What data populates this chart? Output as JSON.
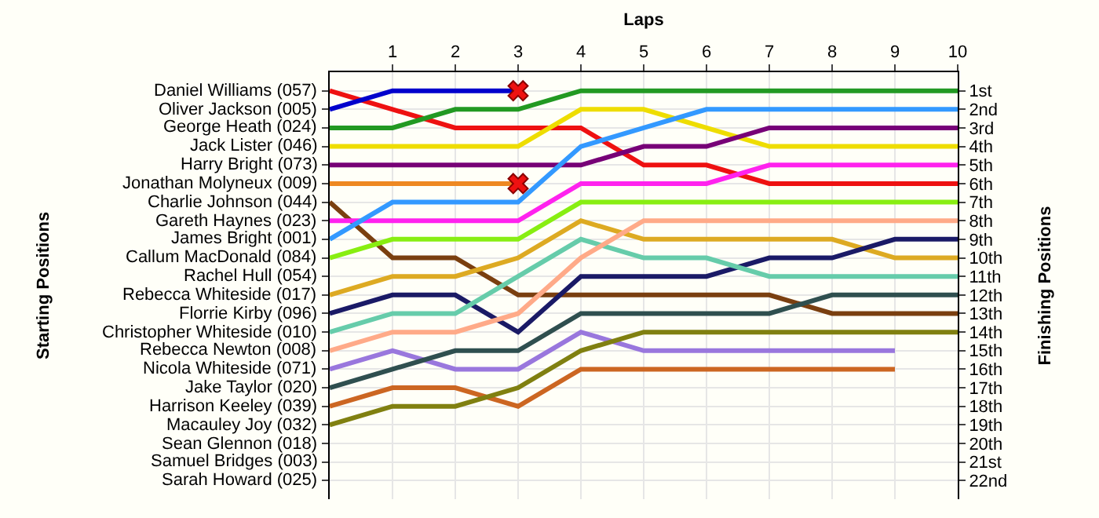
{
  "chart_data": {
    "type": "line",
    "xlabel": "Laps",
    "ylabel": "Finishing Positions",
    "xlim": [
      0,
      10
    ],
    "xticks": [
      1,
      2,
      3,
      4,
      5,
      6,
      7,
      8,
      9,
      10
    ],
    "annotations": [
      "Starting Positions",
      "Daniel Williams (057)",
      "Oliver Jackson (005)",
      "George Heath (024)",
      "Jack Lister (046)",
      "Harry Bright (073)",
      "Jonathan Molyneux (009)",
      "Charlie Johnson (044)",
      "Gareth Haynes (023)",
      "James Bright (001)",
      "Callum MacDonald (084)",
      "Rachel Hull (054)",
      "Rebecca Whiteside (017)",
      "Florrie Kirby (096)",
      "Christopher Whiteside (010)",
      "Rebecca Newton (008)",
      "Nicola Whiteside (071)",
      "Jake Taylor (020)",
      "Harrison Keeley (039)",
      "Macauley Joy (032)",
      "Sean Glennon (018)",
      "Samuel Bridges (003)",
      "Sarah Howard (025)"
    ],
    "ylim": [
      23,
      0
    ],
    "yticks": [
      {
        "value": 1,
        "label": "1st"
      },
      {
        "value": 2,
        "label": "2nd"
      },
      {
        "value": 3,
        "label": "3rd"
      },
      {
        "value": 4,
        "label": "4th"
      },
      {
        "value": 5,
        "label": "5th"
      },
      {
        "value": 6,
        "label": "6th"
      },
      {
        "value": 7,
        "label": "7th"
      },
      {
        "value": 8,
        "label": "8th"
      },
      {
        "value": 9,
        "label": "9th"
      },
      {
        "value": 10,
        "label": "10th"
      },
      {
        "value": 11,
        "label": "11th"
      },
      {
        "value": 12,
        "label": "12th"
      },
      {
        "value": 13,
        "label": "13th"
      },
      {
        "value": 14,
        "label": "14th"
      },
      {
        "value": 15,
        "label": "15th"
      },
      {
        "value": 16,
        "label": "16th"
      },
      {
        "value": 17,
        "label": "17th"
      },
      {
        "value": 18,
        "label": "18th"
      },
      {
        "value": 19,
        "label": "19th"
      },
      {
        "value": 20,
        "label": "20th"
      },
      {
        "value": 21,
        "label": "21st"
      },
      {
        "value": 22,
        "label": "22nd"
      }
    ],
    "grid": true,
    "marker": "none",
    "line_style": "solid",
    "series": [
      {
        "color": "#ee1111",
        "x": [
          0,
          1,
          2,
          3,
          4,
          5,
          6,
          7,
          8,
          9,
          10
        ],
        "values": [
          1,
          2,
          3,
          3,
          3,
          5,
          5,
          6,
          6,
          6,
          6
        ]
      },
      {
        "color": "#0000cc",
        "x": [
          0,
          1,
          2,
          3
        ],
        "values": [
          2,
          1,
          1,
          1
        ]
      },
      {
        "color": "#229922",
        "x": [
          0,
          1,
          2,
          3,
          4,
          5,
          6,
          7,
          8,
          9,
          10
        ],
        "values": [
          3,
          3,
          2,
          2,
          1,
          1,
          1,
          1,
          1,
          1,
          1
        ]
      },
      {
        "color": "#eedd00",
        "x": [
          0,
          1,
          2,
          3,
          4,
          5,
          6,
          7,
          8,
          9,
          10
        ],
        "values": [
          4,
          4,
          4,
          4,
          2,
          2,
          3,
          4,
          4,
          4,
          4
        ]
      },
      {
        "color": "#770077",
        "x": [
          0,
          1,
          2,
          3,
          4,
          5,
          6,
          7,
          8,
          9,
          10
        ],
        "values": [
          5,
          5,
          5,
          5,
          5,
          4,
          4,
          3,
          3,
          3,
          3
        ]
      },
      {
        "color": "#ee8822",
        "x": [
          0,
          1,
          2,
          3
        ],
        "values": [
          6,
          6,
          6,
          6
        ]
      },
      {
        "color": "#7a3f10",
        "x": [
          0,
          1,
          2,
          3,
          4,
          5,
          6,
          7,
          8,
          9,
          10
        ],
        "values": [
          7,
          10,
          10,
          12,
          12,
          12,
          12,
          12,
          13,
          13,
          13
        ]
      },
      {
        "color": "#ff22ee",
        "x": [
          0,
          1,
          2,
          3,
          4,
          5,
          6,
          7,
          8,
          9,
          10
        ],
        "values": [
          8,
          8,
          8,
          8,
          6,
          6,
          6,
          5,
          5,
          5,
          5
        ]
      },
      {
        "color": "#3399ff",
        "x": [
          0,
          1,
          2,
          3,
          4,
          5,
          6,
          7,
          8,
          9,
          10
        ],
        "values": [
          9,
          7,
          7,
          7,
          4,
          3,
          2,
          2,
          2,
          2,
          2
        ]
      },
      {
        "color": "#88ee11",
        "x": [
          0,
          1,
          2,
          3,
          4,
          5,
          6,
          7,
          8,
          9,
          10
        ],
        "values": [
          10,
          9,
          9,
          9,
          7,
          7,
          7,
          7,
          7,
          7,
          7
        ]
      },
      {
        "color": "#ddaa22",
        "x": [
          0,
          1,
          2,
          3,
          4,
          5,
          6,
          7,
          8,
          9,
          10
        ],
        "values": [
          12,
          11,
          11,
          10,
          8,
          9,
          9,
          9,
          9,
          10,
          10
        ]
      },
      {
        "color": "#1a1a66",
        "x": [
          0,
          1,
          2,
          3,
          4,
          5,
          6,
          7,
          8,
          9,
          10
        ],
        "values": [
          13,
          12,
          12,
          14,
          11,
          11,
          11,
          10,
          10,
          9,
          9
        ]
      },
      {
        "color": "#66ccaa",
        "x": [
          0,
          1,
          2,
          3,
          4,
          5,
          6,
          7,
          8,
          9,
          10
        ],
        "values": [
          14,
          13,
          13,
          11,
          9,
          10,
          10,
          11,
          11,
          11,
          11
        ]
      },
      {
        "color": "#ffaa88",
        "x": [
          0,
          1,
          2,
          3,
          4,
          5,
          6,
          7,
          8,
          9,
          10
        ],
        "values": [
          15,
          14,
          14,
          13,
          10,
          8,
          8,
          8,
          8,
          8,
          8
        ]
      },
      {
        "color": "#9977dd",
        "x": [
          0,
          1,
          2,
          3,
          4,
          5,
          6,
          7,
          8,
          9
        ],
        "values": [
          16,
          15,
          16,
          16,
          14,
          15,
          15,
          15,
          15,
          15
        ]
      },
      {
        "color": "#2f4f4f",
        "x": [
          0,
          1,
          2,
          3,
          4,
          5,
          6,
          7,
          8,
          9,
          10
        ],
        "values": [
          17,
          16,
          15,
          15,
          13,
          13,
          13,
          13,
          12,
          12,
          12
        ]
      },
      {
        "color": "#cc6622",
        "x": [
          0,
          1,
          2,
          3,
          4,
          5,
          6,
          7,
          8,
          9
        ],
        "values": [
          18,
          17,
          17,
          18,
          16,
          16,
          16,
          16,
          16,
          16
        ]
      },
      {
        "color": "#808010",
        "x": [
          0,
          1,
          2,
          3,
          4,
          5,
          6,
          7,
          8,
          9,
          10
        ],
        "values": [
          19,
          18,
          18,
          17,
          15,
          14,
          14,
          14,
          14,
          14,
          14
        ]
      },
      {
        "type": "scatter",
        "marker": "cross",
        "color": "#ee1111",
        "x": [
          3,
          3
        ],
        "values": [
          1,
          6
        ]
      }
    ]
  }
}
